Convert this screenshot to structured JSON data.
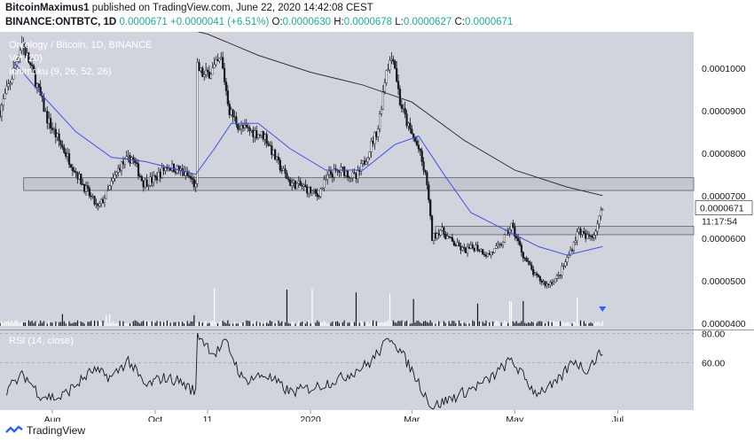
{
  "header": {
    "author": "BitcoinMaximus1",
    "published": "published on TradingView.com, June 22, 2020 14:42:08 CEST",
    "symbol": "BINANCE:ONTBTC, 1D",
    "last": "0.0000671",
    "change": "+0.0000041 (+6.51%)",
    "o_label": "O:",
    "o": "0.0000630",
    "h_label": "H:",
    "h": "0.0000678",
    "l_label": "L:",
    "l": "0.0000627",
    "c_label": "C:",
    "c": "0.0000671"
  },
  "legend": {
    "title": "Ontology / Bitcoin, 1D, BINANCE",
    "vol": "Vol (20)",
    "ichimoku": "Ichimoku (9, 26, 52, 26)",
    "rsi": "RSI (14, close)"
  },
  "footer": {
    "brand": "TradingView"
  },
  "colors": {
    "panel": "#d1d4dc",
    "candle": "#131722",
    "ma": "#3f51e8",
    "ma2": "#222222",
    "last_tag": "#ffffff",
    "marker": "#2962ff"
  },
  "chart_data": {
    "type": "candlestick",
    "title": "Ontology / Bitcoin, 1D, BINANCE",
    "price_ticks": [
      "0.0001000",
      "0.0000900",
      "0.0000800",
      "0.0000700",
      "0.0000600",
      "0.0000500",
      "0.0000400"
    ],
    "price_tick_values": [
      0.0001,
      9e-05,
      8e-05,
      7e-05,
      6e-05,
      5e-05,
      4e-05
    ],
    "ylim": [
      3.85e-05,
      0.0001085
    ],
    "last_price_label": "0.0000671",
    "countdown_label": "11:17:54",
    "rsi_ticks": [
      "80.00",
      "60.00"
    ],
    "rsi_tick_values": [
      80,
      60
    ],
    "rsi_ylim": [
      28,
      82
    ],
    "x_labels": [
      "Aug",
      "Oct",
      "11",
      "2020",
      "Mar",
      "May",
      "Jul"
    ],
    "x_label_dates": [
      "2019-08-01",
      "2019-10-01",
      "2019-11-01",
      "2020-01-01",
      "2020-03-01",
      "2020-05-01",
      "2020-07-01"
    ],
    "date_range": [
      "2019-07-01",
      "2020-08-15"
    ],
    "resistance_zone": [
      7.12e-05,
      7.42e-05
    ],
    "support_zone": [
      6.08e-05,
      6.28e-05
    ],
    "price_path": [
      [
        "2019-07-01",
        9e-05
      ],
      [
        "2019-07-08",
        9.8e-05
      ],
      [
        "2019-07-14",
        0.000106
      ],
      [
        "2019-07-22",
        9.7e-05
      ],
      [
        "2019-07-29",
        8.8e-05
      ],
      [
        "2019-08-06",
        8.2e-05
      ],
      [
        "2019-08-13",
        7.7e-05
      ],
      [
        "2019-08-20",
        7.2e-05
      ],
      [
        "2019-08-28",
        6.7e-05
      ],
      [
        "2019-09-03",
        7.1e-05
      ],
      [
        "2019-09-10",
        7.7e-05
      ],
      [
        "2019-09-17",
        7.9e-05
      ],
      [
        "2019-09-24",
        7.3e-05
      ],
      [
        "2019-10-01",
        7.4e-05
      ],
      [
        "2019-10-08",
        7.7e-05
      ],
      [
        "2019-10-15",
        7.6e-05
      ],
      [
        "2019-10-22",
        7.4e-05
      ],
      [
        "2019-10-25",
        7.2e-05
      ],
      [
        "2019-10-26",
        0.0001
      ],
      [
        "2019-10-30",
        9.8e-05
      ],
      [
        "2019-11-05",
        0.0001
      ],
      [
        "2019-11-09",
        0.000102
      ],
      [
        "2019-11-14",
        9e-05
      ],
      [
        "2019-11-20",
        8.6e-05
      ],
      [
        "2019-11-28",
        8.5e-05
      ],
      [
        "2019-12-05",
        8.4e-05
      ],
      [
        "2019-12-12",
        7.8e-05
      ],
      [
        "2019-12-20",
        7.3e-05
      ],
      [
        "2019-12-28",
        7.2e-05
      ],
      [
        "2020-01-05",
        7e-05
      ],
      [
        "2020-01-12",
        7.5e-05
      ],
      [
        "2020-01-20",
        7.6e-05
      ],
      [
        "2020-01-28",
        7.4e-05
      ],
      [
        "2020-02-03",
        7.9e-05
      ],
      [
        "2020-02-10",
        8.6e-05
      ],
      [
        "2020-02-15",
        0.0001
      ],
      [
        "2020-02-19",
        0.000103
      ],
      [
        "2020-02-23",
        9.2e-05
      ],
      [
        "2020-02-28",
        8.6e-05
      ],
      [
        "2020-03-05",
        8.1e-05
      ],
      [
        "2020-03-10",
        7.3e-05
      ],
      [
        "2020-03-13",
        6e-05
      ],
      [
        "2020-03-18",
        6.2e-05
      ],
      [
        "2020-03-25",
        5.9e-05
      ],
      [
        "2020-04-01",
        5.7e-05
      ],
      [
        "2020-04-08",
        5.8e-05
      ],
      [
        "2020-04-15",
        5.6e-05
      ],
      [
        "2020-04-22",
        5.8e-05
      ],
      [
        "2020-04-29",
        6.3e-05
      ],
      [
        "2020-05-06",
        5.6e-05
      ],
      [
        "2020-05-13",
        5.1e-05
      ],
      [
        "2020-05-20",
        4.9e-05
      ],
      [
        "2020-05-27",
        5.1e-05
      ],
      [
        "2020-06-02",
        5.6e-05
      ],
      [
        "2020-06-08",
        6.2e-05
      ],
      [
        "2020-06-12",
        6e-05
      ],
      [
        "2020-06-17",
        6.1e-05
      ],
      [
        "2020-06-22",
        6.71e-05
      ]
    ],
    "ma_fast": [
      [
        "2019-07-08",
        0.000102
      ],
      [
        "2019-07-25",
        9.4e-05
      ],
      [
        "2019-08-15",
        8.5e-05
      ],
      [
        "2019-09-05",
        7.9e-05
      ],
      [
        "2019-09-25",
        7.8e-05
      ],
      [
        "2019-10-15",
        7.6e-05
      ],
      [
        "2019-10-25",
        7.5e-05
      ],
      [
        "2019-11-05",
        8.1e-05
      ],
      [
        "2019-11-15",
        8.7e-05
      ],
      [
        "2019-12-01",
        8.7e-05
      ],
      [
        "2019-12-20",
        8.1e-05
      ],
      [
        "2020-01-10",
        7.6e-05
      ],
      [
        "2020-02-01",
        7.6e-05
      ],
      [
        "2020-02-20",
        8.2e-05
      ],
      [
        "2020-03-05",
        8.4e-05
      ],
      [
        "2020-03-20",
        7.5e-05
      ],
      [
        "2020-04-05",
        6.6e-05
      ],
      [
        "2020-04-25",
        6.2e-05
      ],
      [
        "2020-05-15",
        5.8e-05
      ],
      [
        "2020-06-01",
        5.6e-05
      ],
      [
        "2020-06-22",
        5.8e-05
      ]
    ],
    "ma_slow": [
      [
        "2019-09-20",
        0.000112
      ],
      [
        "2019-11-01",
        0.000108
      ],
      [
        "2019-12-01",
        0.000103
      ],
      [
        "2020-01-01",
        9.9e-05
      ],
      [
        "2020-02-01",
        9.6e-05
      ],
      [
        "2020-03-01",
        9.2e-05
      ],
      [
        "2020-04-01",
        8.3e-05
      ],
      [
        "2020-05-01",
        7.6e-05
      ],
      [
        "2020-06-01",
        7.2e-05
      ],
      [
        "2020-06-22",
        7e-05
      ]
    ],
    "volume_path": [
      [
        "2019-10-25",
        0.1
      ],
      [
        "2019-10-26",
        0.95
      ],
      [
        "2019-10-28",
        0.5
      ],
      [
        "2020-02-18",
        0.4
      ],
      [
        "2020-03-13",
        0.25
      ],
      [
        "2020-06-22",
        0.35
      ]
    ],
    "rsi_path": [
      [
        "2019-07-05",
        42
      ],
      [
        "2019-07-15",
        52
      ],
      [
        "2019-07-25",
        38
      ],
      [
        "2019-08-05",
        36
      ],
      [
        "2019-08-15",
        45
      ],
      [
        "2019-08-25",
        55
      ],
      [
        "2019-09-05",
        50
      ],
      [
        "2019-09-15",
        62
      ],
      [
        "2019-09-25",
        44
      ],
      [
        "2019-10-05",
        50
      ],
      [
        "2019-10-15",
        48
      ],
      [
        "2019-10-25",
        40
      ],
      [
        "2019-10-26",
        80
      ],
      [
        "2019-11-05",
        66
      ],
      [
        "2019-11-12",
        74
      ],
      [
        "2019-11-22",
        48
      ],
      [
        "2019-12-05",
        52
      ],
      [
        "2019-12-20",
        40
      ],
      [
        "2020-01-05",
        44
      ],
      [
        "2020-01-20",
        50
      ],
      [
        "2020-02-05",
        60
      ],
      [
        "2020-02-18",
        78
      ],
      [
        "2020-03-01",
        55
      ],
      [
        "2020-03-13",
        30
      ],
      [
        "2020-04-01",
        40
      ],
      [
        "2020-04-15",
        48
      ],
      [
        "2020-04-29",
        62
      ],
      [
        "2020-05-13",
        40
      ],
      [
        "2020-05-25",
        45
      ],
      [
        "2020-06-05",
        62
      ],
      [
        "2020-06-12",
        55
      ],
      [
        "2020-06-22",
        68
      ]
    ]
  }
}
